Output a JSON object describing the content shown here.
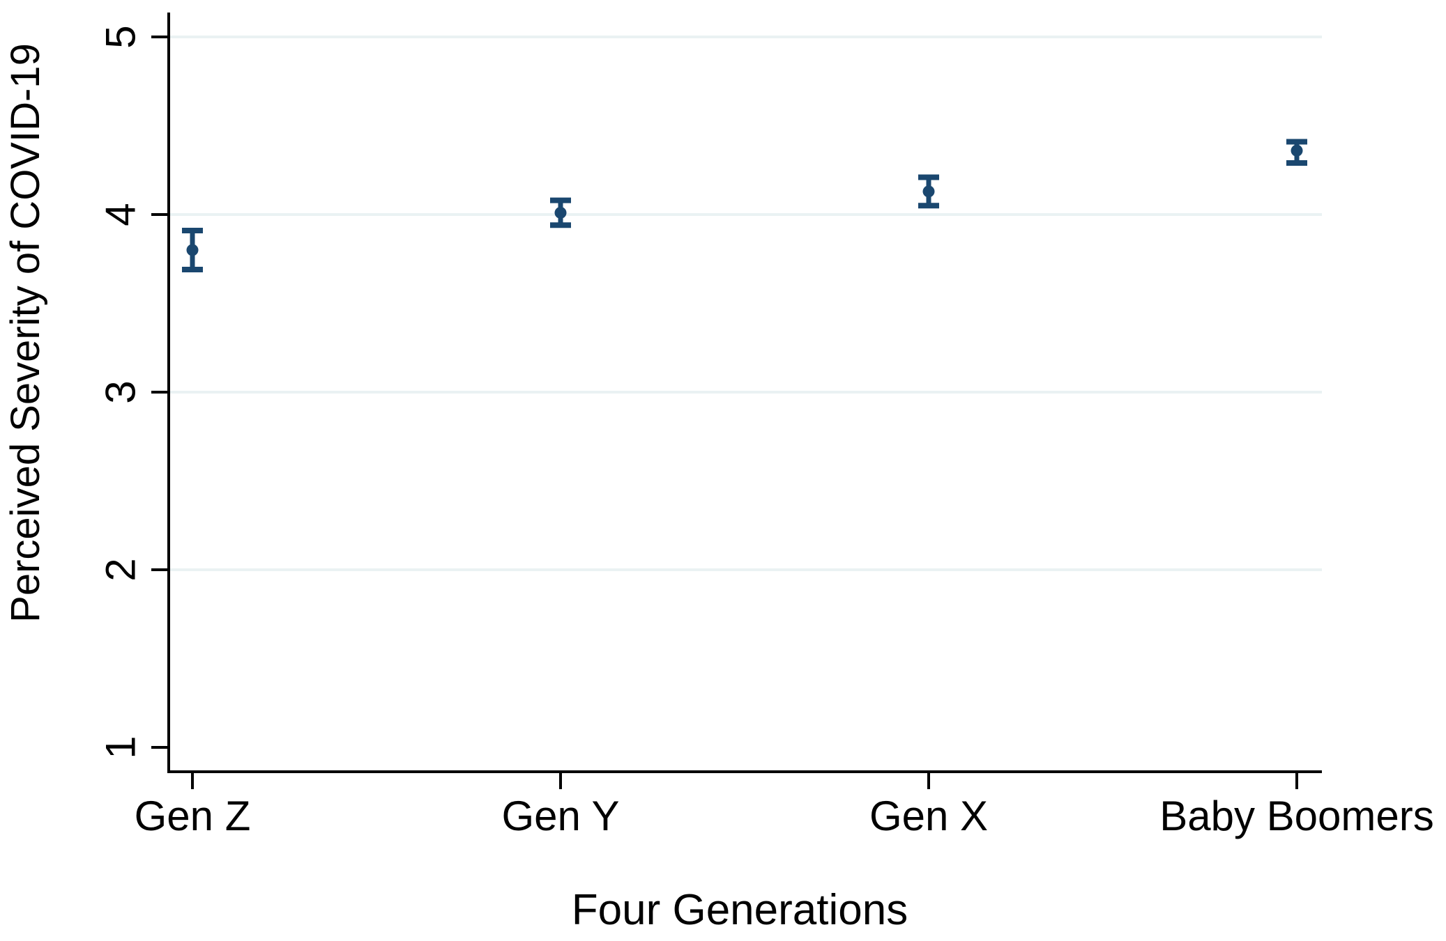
{
  "chart_data": {
    "type": "scatter",
    "subtype": "point-estimates-with-95ci-errorbars",
    "title": "",
    "xlabel": "Four Generations",
    "ylabel": "Perceived Severity of COVID-19",
    "categories": [
      "Gen Z",
      "Gen Y",
      "Gen X",
      "Baby Boomers"
    ],
    "series": [
      {
        "name": "Perceived Severity of COVID-19",
        "values": [
          3.8,
          4.01,
          4.13,
          4.36
        ],
        "ci_low": [
          3.69,
          3.94,
          4.05,
          4.29
        ],
        "ci_high": [
          3.91,
          4.08,
          4.21,
          4.41
        ]
      }
    ],
    "y_ticks": [
      1,
      2,
      3,
      4,
      5
    ],
    "ylim": [
      1,
      5.15
    ],
    "grid": "horizontal",
    "grid_values": [
      2,
      3,
      4,
      5
    ],
    "legend": "none",
    "colors": {
      "marker": "#1a476f",
      "grid": "#eaf2f3",
      "axis": "#000000",
      "background": "#ffffff"
    }
  }
}
